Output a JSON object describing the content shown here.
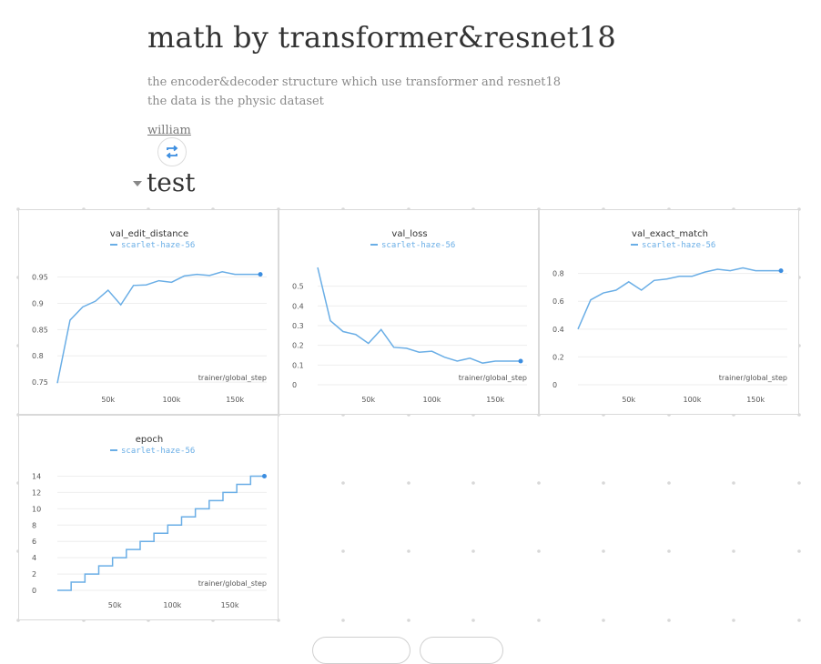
{
  "report": {
    "title": "math by transformer&resnet18",
    "description_lines": [
      "the encoder&decoder structure which use transformer and resnet18",
      "the data is the physic dataset"
    ],
    "author": "william"
  },
  "section": {
    "title": "test"
  },
  "colors": {
    "series": "#6aaee6",
    "grid": "#eeeeee",
    "text": "#333333"
  },
  "icons": {
    "sync": "sync-arrows-icon",
    "caret": "caret-down-icon"
  },
  "chart_data": [
    {
      "type": "line",
      "title": "val_edit_distance",
      "xlabel": "trainer/global_step",
      "series": [
        {
          "name": "scarlet-haze-56",
          "x": [
            10000,
            20000,
            30000,
            40000,
            50000,
            60000,
            70000,
            80000,
            90000,
            100000,
            110000,
            120000,
            130000,
            140000,
            150000,
            160000,
            170000
          ],
          "y": [
            0.748,
            0.868,
            0.893,
            0.904,
            0.925,
            0.897,
            0.934,
            0.935,
            0.943,
            0.94,
            0.952,
            0.955,
            0.953,
            0.96,
            0.955,
            0.955,
            0.955
          ]
        }
      ],
      "xlim": [
        10000,
        175000
      ],
      "ylim": [
        0.745,
        0.97
      ],
      "xticks": [
        50000,
        100000,
        150000
      ],
      "xtick_labels": [
        "50k",
        "100k",
        "150k"
      ],
      "yticks": [
        0.75,
        0.8,
        0.85,
        0.9,
        0.95
      ],
      "ytick_labels": [
        "0.75",
        "0.8",
        "0.85",
        "0.9",
        "0.95"
      ]
    },
    {
      "type": "line",
      "title": "val_loss",
      "xlabel": "trainer/global_step",
      "series": [
        {
          "name": "scarlet-haze-56",
          "x": [
            10000,
            20000,
            30000,
            40000,
            50000,
            60000,
            70000,
            80000,
            90000,
            100000,
            110000,
            120000,
            130000,
            140000,
            150000,
            160000,
            170000
          ],
          "y": [
            0.595,
            0.325,
            0.27,
            0.255,
            0.21,
            0.28,
            0.19,
            0.185,
            0.165,
            0.17,
            0.14,
            0.12,
            0.135,
            0.11,
            0.12,
            0.12,
            0.12
          ]
        }
      ],
      "xlim": [
        10000,
        175000
      ],
      "ylim": [
        0,
        0.6
      ],
      "xticks": [
        50000,
        100000,
        150000
      ],
      "xtick_labels": [
        "50k",
        "100k",
        "150k"
      ],
      "yticks": [
        0,
        0.1,
        0.2,
        0.3,
        0.4,
        0.5
      ],
      "ytick_labels": [
        "0",
        "0.1",
        "0.2",
        "0.3",
        "0.4",
        "0.5"
      ]
    },
    {
      "type": "line",
      "title": "val_exact_match",
      "xlabel": "trainer/global_step",
      "series": [
        {
          "name": "scarlet-haze-56",
          "x": [
            10000,
            20000,
            30000,
            40000,
            50000,
            60000,
            70000,
            80000,
            90000,
            100000,
            110000,
            120000,
            130000,
            140000,
            150000,
            160000,
            170000
          ],
          "y": [
            0.4,
            0.61,
            0.66,
            0.68,
            0.74,
            0.68,
            0.75,
            0.76,
            0.78,
            0.78,
            0.81,
            0.83,
            0.82,
            0.84,
            0.82,
            0.82,
            0.82
          ]
        }
      ],
      "xlim": [
        10000,
        175000
      ],
      "ylim": [
        0,
        0.85
      ],
      "xticks": [
        50000,
        100000,
        150000
      ],
      "xtick_labels": [
        "50k",
        "100k",
        "150k"
      ],
      "yticks": [
        0,
        0.2,
        0.4,
        0.6,
        0.8
      ],
      "ytick_labels": [
        "0",
        "0.2",
        "0.4",
        "0.6",
        "0.8"
      ]
    },
    {
      "type": "line",
      "step": true,
      "title": "epoch",
      "xlabel": "trainer/global_step",
      "series": [
        {
          "name": "scarlet-haze-56",
          "x": [
            0,
            12000,
            24000,
            36000,
            48000,
            60000,
            72000,
            84000,
            96000,
            108000,
            120000,
            132000,
            144000,
            156000,
            168000,
            180000
          ],
          "y": [
            0,
            1,
            2,
            3,
            4,
            5,
            6,
            7,
            8,
            9,
            10,
            11,
            12,
            13,
            14,
            14
          ]
        }
      ],
      "xlim": [
        0,
        182000
      ],
      "ylim": [
        0,
        14.5
      ],
      "xticks": [
        50000,
        100000,
        150000
      ],
      "xtick_labels": [
        "50k",
        "100k",
        "150k"
      ],
      "yticks": [
        0,
        2,
        4,
        6,
        8,
        10,
        12,
        14
      ],
      "ytick_labels": [
        "0",
        "2",
        "4",
        "6",
        "8",
        "10",
        "12",
        "14"
      ]
    }
  ]
}
